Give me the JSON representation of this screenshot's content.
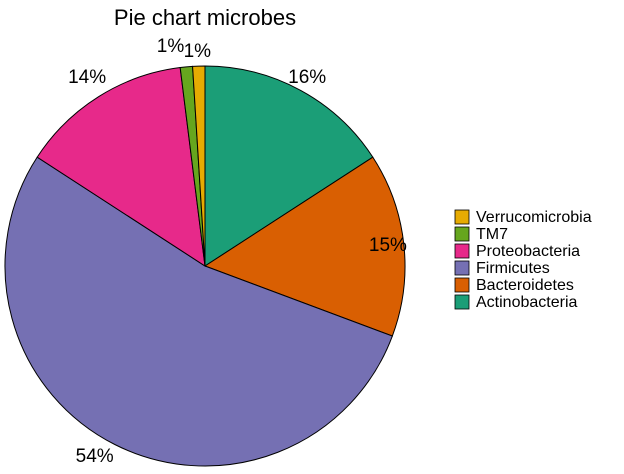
{
  "chart_data": {
    "type": "pie",
    "title": "Pie chart microbes",
    "legend_position": "right",
    "start_angle": "12 o'clock",
    "direction": "clockwise",
    "slices": [
      {
        "name": "Actinobacteria",
        "value": 16,
        "label": "16%",
        "color": "#1B9E77"
      },
      {
        "name": "Bacteroidetes",
        "value": 15,
        "label": "15%",
        "color": "#D95F02"
      },
      {
        "name": "Firmicutes",
        "value": 54,
        "label": "54%",
        "color": "#7570B3"
      },
      {
        "name": "Proteobacteria",
        "value": 14,
        "label": "14%",
        "color": "#E7298A"
      },
      {
        "name": "TM7",
        "value": 1,
        "label": "1%",
        "color": "#66A61E"
      },
      {
        "name": "Verrucomicrobia",
        "value": 1,
        "label": "1%",
        "color": "#E6AB02"
      }
    ],
    "legend_order": [
      "Verrucomicrobia",
      "TM7",
      "Proteobacteria",
      "Firmicutes",
      "Bacteroidetes",
      "Actinobacteria"
    ]
  }
}
